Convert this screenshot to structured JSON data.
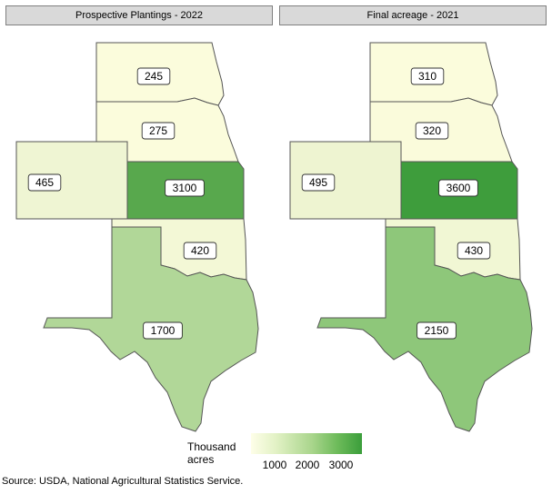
{
  "panels": [
    {
      "title": "Prospective Plantings - 2022",
      "states": {
        "SD": {
          "value": 245,
          "color": "#fbfcdc"
        },
        "NE": {
          "value": 275,
          "color": "#fbfcdc"
        },
        "CO": {
          "value": 465,
          "color": "#eff5d3"
        },
        "KS": {
          "value": 3100,
          "color": "#58a84d"
        },
        "OK": {
          "value": 420,
          "color": "#f3f8d6"
        },
        "TX": {
          "value": 1700,
          "color": "#b1d798"
        }
      }
    },
    {
      "title": "Final acreage - 2021",
      "states": {
        "SD": {
          "value": 310,
          "color": "#fbfcdc"
        },
        "NE": {
          "value": 320,
          "color": "#fafbdb"
        },
        "CO": {
          "value": 495,
          "color": "#eef4d1"
        },
        "KS": {
          "value": 3600,
          "color": "#3e9d3c"
        },
        "OK": {
          "value": 430,
          "color": "#f1f7d4"
        },
        "TX": {
          "value": 2150,
          "color": "#8ec77a"
        }
      }
    }
  ],
  "legend": {
    "title": "Thousand acres",
    "ticks": [
      "1000",
      "2000",
      "3000"
    ],
    "color_low": "#fefee8",
    "color_high": "#3b9e3b"
  },
  "source": "Source: USDA, National Agricultural Statistics Service."
}
